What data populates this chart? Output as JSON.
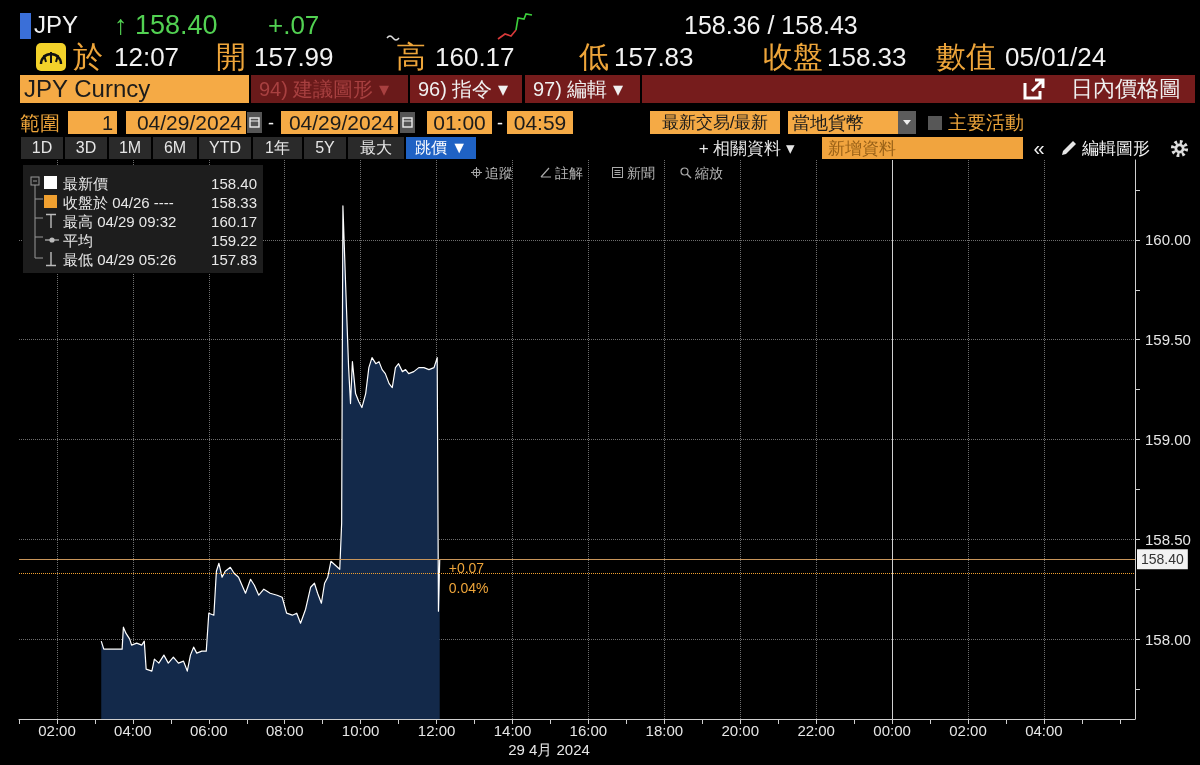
{
  "chart_data": {
    "type": "area",
    "title": "日內價格圖",
    "xlabel": "29 4月 2024",
    "series": [
      {
        "name": "最新價",
        "color": "#ffffff",
        "x": [
          "2024-04-29T03:10",
          "2024-04-29T03:14",
          "2024-04-29T03:43",
          "2024-04-29T03:45",
          "2024-04-29T03:49",
          "2024-04-29T03:55",
          "2024-04-29T03:58",
          "2024-04-29T04:06",
          "2024-04-29T04:14",
          "2024-04-29T04:18",
          "2024-04-29T04:21",
          "2024-04-29T04:30",
          "2024-04-29T04:34",
          "2024-04-29T04:41",
          "2024-04-29T04:49",
          "2024-04-29T04:56",
          "2024-04-29T05:04",
          "2024-04-29T05:12",
          "2024-04-29T05:20",
          "2024-04-29T05:26",
          "2024-04-29T05:31",
          "2024-04-29T05:36",
          "2024-04-29T05:41",
          "2024-04-29T05:49",
          "2024-04-29T05:56",
          "2024-04-29T06:00",
          "2024-04-29T06:08",
          "2024-04-29T06:12",
          "2024-04-29T06:16",
          "2024-04-29T06:21",
          "2024-04-29T06:26",
          "2024-04-29T06:34",
          "2024-04-29T06:40",
          "2024-04-29T06:47",
          "2024-04-29T06:58",
          "2024-04-29T07:06",
          "2024-04-29T07:12",
          "2024-04-29T07:19",
          "2024-04-29T07:27",
          "2024-04-29T07:37",
          "2024-04-29T07:48",
          "2024-04-29T07:56",
          "2024-04-29T08:03",
          "2024-04-29T08:12",
          "2024-04-29T08:19",
          "2024-04-29T08:25",
          "2024-04-29T08:33",
          "2024-04-29T08:41",
          "2024-04-29T08:47",
          "2024-04-29T08:52",
          "2024-04-29T08:58",
          "2024-04-29T09:03",
          "2024-04-29T09:08",
          "2024-04-29T09:13",
          "2024-04-29T09:20",
          "2024-04-29T09:27",
          "2024-04-29T09:30",
          "2024-04-29T09:32",
          "2024-04-29T09:36",
          "2024-04-29T09:41",
          "2024-04-29T09:44",
          "2024-04-29T09:47",
          "2024-04-29T09:52",
          "2024-04-29T09:57",
          "2024-04-29T10:02",
          "2024-04-29T10:08",
          "2024-04-29T10:13",
          "2024-04-29T10:18",
          "2024-04-29T10:24",
          "2024-04-29T10:29",
          "2024-04-29T10:34",
          "2024-04-29T10:39",
          "2024-04-29T10:45",
          "2024-04-29T10:50",
          "2024-04-29T10:55",
          "2024-04-29T11:00",
          "2024-04-29T11:06",
          "2024-04-29T11:11",
          "2024-04-29T11:16",
          "2024-04-29T11:24",
          "2024-04-29T11:32",
          "2024-04-29T11:40",
          "2024-04-29T11:48",
          "2024-04-29T11:56",
          "2024-04-29T12:01",
          "2024-04-29T12:03",
          "2024-04-29T12:05"
        ],
        "values": [
          157.99,
          157.95,
          157.95,
          158.06,
          158.03,
          158.0,
          157.97,
          157.98,
          157.97,
          157.99,
          157.85,
          157.84,
          157.9,
          157.88,
          157.92,
          157.88,
          157.91,
          157.88,
          157.89,
          157.84,
          157.92,
          157.96,
          157.93,
          157.94,
          157.94,
          158.13,
          158.12,
          158.34,
          158.38,
          158.31,
          158.34,
          158.36,
          158.33,
          158.31,
          158.23,
          158.3,
          158.27,
          158.22,
          158.25,
          158.23,
          158.22,
          158.21,
          158.13,
          158.12,
          158.13,
          158.08,
          158.15,
          158.26,
          158.28,
          158.23,
          158.18,
          158.28,
          158.31,
          158.39,
          158.37,
          158.35,
          158.58,
          160.17,
          159.8,
          159.36,
          159.18,
          159.39,
          159.23,
          159.19,
          159.16,
          159.23,
          159.36,
          159.41,
          159.38,
          159.39,
          159.35,
          159.33,
          159.28,
          159.26,
          159.36,
          159.38,
          159.34,
          159.35,
          159.33,
          159.34,
          159.36,
          159.36,
          159.35,
          159.36,
          159.41,
          158.14,
          158.4
        ]
      }
    ],
    "xlim": [
      "2024-04-29T01:00",
      "2024-04-30T06:24"
    ],
    "xticks": [
      {
        "value": "2024-04-29T01:00",
        "label": null
      },
      {
        "value": "2024-04-29T02:00",
        "label": "02:00"
      },
      {
        "value": "2024-04-29T03:00",
        "label": null
      },
      {
        "value": "2024-04-29T04:00",
        "label": "04:00"
      },
      {
        "value": "2024-04-29T05:00",
        "label": null
      },
      {
        "value": "2024-04-29T06:00",
        "label": "06:00"
      },
      {
        "value": "2024-04-29T07:00",
        "label": null
      },
      {
        "value": "2024-04-29T08:00",
        "label": "08:00"
      },
      {
        "value": "2024-04-29T09:00",
        "label": null
      },
      {
        "value": "2024-04-29T10:00",
        "label": "10:00"
      },
      {
        "value": "2024-04-29T11:00",
        "label": null
      },
      {
        "value": "2024-04-29T12:00",
        "label": "12:00"
      },
      {
        "value": "2024-04-29T13:00",
        "label": null
      },
      {
        "value": "2024-04-29T14:00",
        "label": "14:00"
      },
      {
        "value": "2024-04-29T15:00",
        "label": null
      },
      {
        "value": "2024-04-29T16:00",
        "label": "16:00"
      },
      {
        "value": "2024-04-29T17:00",
        "label": null
      },
      {
        "value": "2024-04-29T18:00",
        "label": "18:00"
      },
      {
        "value": "2024-04-29T19:00",
        "label": null
      },
      {
        "value": "2024-04-29T20:00",
        "label": "20:00"
      },
      {
        "value": "2024-04-29T21:00",
        "label": null
      },
      {
        "value": "2024-04-29T22:00",
        "label": "22:00"
      },
      {
        "value": "2024-04-29T23:00",
        "label": null
      },
      {
        "value": "2024-04-30T00:00",
        "label": "00:00"
      },
      {
        "value": "2024-04-30T01:00",
        "label": null
      },
      {
        "value": "2024-04-30T02:00",
        "label": "02:00"
      },
      {
        "value": "2024-04-30T03:00",
        "label": null
      },
      {
        "value": "2024-04-30T04:00",
        "label": "04:00"
      },
      {
        "value": "2024-04-30T05:00",
        "label": null
      },
      {
        "value": "2024-04-30T06:00",
        "label": null
      }
    ],
    "ylim": [
      157.6,
      160.4
    ],
    "yticks": [
      {
        "value": 157.75,
        "label": null
      },
      {
        "value": 158,
        "label": "158.00"
      },
      {
        "value": 158.25,
        "label": null
      },
      {
        "value": 158.5,
        "label": "158.50"
      },
      {
        "value": 158.75,
        "label": null
      },
      {
        "value": 159,
        "label": "159.00"
      },
      {
        "value": 159.25,
        "label": null
      },
      {
        "value": 159.5,
        "label": "159.50"
      },
      {
        "value": 159.75,
        "label": null
      },
      {
        "value": 160,
        "label": "160.00"
      },
      {
        "value": 160.25,
        "label": null
      }
    ],
    "ref_lines": [
      {
        "axis": "y",
        "value": 158.4,
        "label": "158.40",
        "color": "#c8955a",
        "line_style": "solid"
      },
      {
        "axis": "y",
        "value": 158.33,
        "label": "收盤於 04/26 ----",
        "color": "#f0a030",
        "line_style": "dotted"
      },
      {
        "axis": "x",
        "value": "2024-04-30T00:00",
        "color": "#cfcfcf",
        "line_style": "solid"
      }
    ],
    "annotations": [
      "JPY",
      "↑ 158.40",
      "+.07",
      "158.36 / 158.43",
      "於",
      "12:07",
      "開",
      "157.99",
      "高",
      "160.17",
      "低",
      "157.83",
      "收盤",
      "158.33",
      "數值",
      "05/01/24",
      "JPY Curncy",
      "94) 建議圖形 ▾",
      "96) 指令 ▾",
      "97) 編輯 ▾",
      "範圍",
      "1",
      "04/29/2024",
      "-",
      "04/29/2024",
      "01:00",
      "-",
      "04:59",
      "最新交易/最新",
      "當地貨幣",
      "主要活動",
      "1D",
      "3D",
      "1M",
      "6M",
      "YTD",
      "1年",
      "5Y",
      "最大",
      "跳價 ▼",
      "+ 相關資料 ▾",
      "新增資料",
      "«",
      "編輯圖形",
      "追蹤",
      "註解",
      "新聞",
      "縮放",
      "最高 04/29 09:32 160.17",
      "平均 159.22",
      "最低 04/29 05:26 157.83",
      "+0.07",
      "0.04%",
      "158.40"
    ],
    "grid": true,
    "legend": "top left"
  }
}
